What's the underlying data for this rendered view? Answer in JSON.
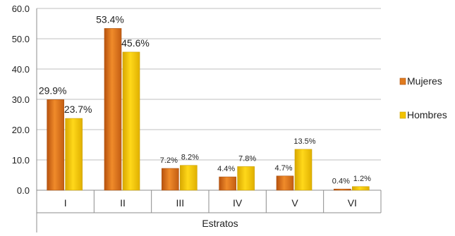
{
  "chart_data": {
    "type": "bar",
    "categories": [
      "I",
      "II",
      "III",
      "IV",
      "V",
      "VI"
    ],
    "series": [
      {
        "name": "Mujeres",
        "values": [
          29.9,
          53.4,
          7.2,
          4.4,
          4.7,
          0.4
        ],
        "labels": [
          "29.9%",
          "53.4%",
          "7.2%",
          "4.4%",
          "4.7%",
          "0.4%"
        ],
        "color": "#e07b1f"
      },
      {
        "name": "Hombres",
        "values": [
          23.7,
          45.6,
          8.2,
          7.8,
          13.5,
          1.2
        ],
        "labels": [
          "23.7%",
          "45.6%",
          "8.2%",
          "7.8%",
          "13.5%",
          "1.2%"
        ],
        "color": "#f2c300"
      }
    ],
    "xlabel": "Estratos",
    "ylabel": "",
    "ylim": [
      0,
      60
    ],
    "yticks": [
      "0.0",
      "10.0",
      "20.0",
      "30.0",
      "40.0",
      "50.0",
      "60.0"
    ],
    "grid": true,
    "legend_position": "right"
  }
}
